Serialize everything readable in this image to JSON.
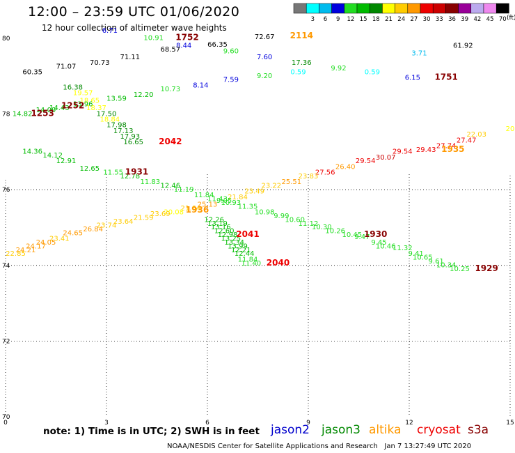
{
  "header": {
    "title": "12:00 – 23:59 UTC 01/06/2020",
    "subtitle": "12 hour collection of altimeter wave heights"
  },
  "footer": {
    "note": "note:  1) Time is in UTC;  2) SWH is in feet",
    "satellites": [
      {
        "name": "jason2",
        "color": "#0000cc"
      },
      {
        "name": "jason3",
        "color": "#008800"
      },
      {
        "name": "altika",
        "color": "#ff9900"
      },
      {
        "name": "cryosat",
        "color": "#ee0000"
      },
      {
        "name": "s3a",
        "color": "#880000"
      }
    ],
    "credit": "NOAA/NESDIS Center for Satellite Applications and Research",
    "timestamp": "Jan  7 13:27:49 UTC 2020"
  },
  "chart_data": {
    "type": "scatter",
    "title": "12:00 – 23:59 UTC 01/06/2020",
    "subtitle": "12 hour collection of altimeter wave heights",
    "xlim": [
      0,
      15
    ],
    "ylim": [
      70,
      80
    ],
    "x_ticks": [
      "0",
      "3",
      "6",
      "9",
      "12",
      "15"
    ],
    "y_ticks": [
      "70",
      "72",
      "74",
      "76",
      "78",
      "80"
    ],
    "grid": "dotted",
    "legend": {
      "placement": "top-right",
      "unit": "(ft)",
      "bins": [
        {
          "label": "",
          "color": "#777777"
        },
        {
          "label": "3",
          "color": "#00ffff"
        },
        {
          "label": "6",
          "color": "#00bbee"
        },
        {
          "label": "9",
          "color": "#0000dd"
        },
        {
          "label": "12",
          "color": "#22dd22"
        },
        {
          "label": "15",
          "color": "#00bb00"
        },
        {
          "label": "18",
          "color": "#008800"
        },
        {
          "label": "21",
          "color": "#ffff00"
        },
        {
          "label": "24",
          "color": "#ffcc00"
        },
        {
          "label": "27",
          "color": "#ff9900"
        },
        {
          "label": "30",
          "color": "#ee0000"
        },
        {
          "label": "33",
          "color": "#cc0000"
        },
        {
          "label": "36",
          "color": "#880000"
        },
        {
          "label": "39",
          "color": "#990099"
        },
        {
          "label": "42",
          "color": "#bbaaee"
        },
        {
          "label": "45",
          "color": "#ee88ee"
        },
        {
          "label": "70",
          "color": "#000000"
        }
      ]
    },
    "points": [
      {
        "x": 3.1,
        "y": 80.15,
        "v": "6.71"
      },
      {
        "x": 4.4,
        "y": 79.95,
        "v": "10.91"
      },
      {
        "x": 5.3,
        "y": 79.75,
        "v": "8.44"
      },
      {
        "x": 4.9,
        "y": 79.65,
        "v": "68.57"
      },
      {
        "x": 6.3,
        "y": 79.78,
        "v": "66.35"
      },
      {
        "x": 6.7,
        "y": 79.6,
        "v": "9.60"
      },
      {
        "x": 7.7,
        "y": 79.98,
        "v": "72.67"
      },
      {
        "x": 3.7,
        "y": 79.45,
        "v": "71.11"
      },
      {
        "x": 2.8,
        "y": 79.3,
        "v": "70.73"
      },
      {
        "x": 7.7,
        "y": 79.45,
        "v": "7.60"
      },
      {
        "x": 8.8,
        "y": 79.3,
        "v": "17.36"
      },
      {
        "x": 12.3,
        "y": 79.55,
        "v": "3.71"
      },
      {
        "x": 13.6,
        "y": 79.75,
        "v": "61.92"
      },
      {
        "x": 9.9,
        "y": 79.15,
        "v": "9.92"
      },
      {
        "x": 1.8,
        "y": 79.2,
        "v": "71.07"
      },
      {
        "x": 0.8,
        "y": 79.05,
        "v": "60.35"
      },
      {
        "x": 8.7,
        "y": 79.05,
        "v": "0.59"
      },
      {
        "x": 10.9,
        "y": 79.05,
        "v": "0.59"
      },
      {
        "x": 7.7,
        "y": 78.95,
        "v": "9.20"
      },
      {
        "x": 12.1,
        "y": 78.9,
        "v": "6.15"
      },
      {
        "x": 6.7,
        "y": 78.85,
        "v": "7.59"
      },
      {
        "x": 5.8,
        "y": 78.7,
        "v": "8.14"
      },
      {
        "x": 4.9,
        "y": 78.6,
        "v": "10.73"
      },
      {
        "x": 2.0,
        "y": 78.65,
        "v": "16.38"
      },
      {
        "x": 2.3,
        "y": 78.5,
        "v": "19.57"
      },
      {
        "x": 4.1,
        "y": 78.45,
        "v": "12.20"
      },
      {
        "x": 3.3,
        "y": 78.35,
        "v": "13.59"
      },
      {
        "x": 2.5,
        "y": 78.3,
        "v": "18.65"
      },
      {
        "x": 2.3,
        "y": 78.2,
        "v": "13.96"
      },
      {
        "x": 2.7,
        "y": 78.1,
        "v": "18.37"
      },
      {
        "x": 1.6,
        "y": 78.1,
        "v": "14.43"
      },
      {
        "x": 1.2,
        "y": 78.05,
        "v": "14.09"
      },
      {
        "x": 0.5,
        "y": 77.95,
        "v": "14.82"
      },
      {
        "x": 3.0,
        "y": 77.95,
        "v": "17.50"
      },
      {
        "x": 3.1,
        "y": 77.8,
        "v": "18.84"
      },
      {
        "x": 3.3,
        "y": 77.65,
        "v": "17.98"
      },
      {
        "x": 3.5,
        "y": 77.5,
        "v": "17.13"
      },
      {
        "x": 3.7,
        "y": 77.35,
        "v": "17.93"
      },
      {
        "x": 3.8,
        "y": 77.2,
        "v": "16.65"
      },
      {
        "x": 15.0,
        "y": 77.55,
        "v": "20"
      },
      {
        "x": 14.0,
        "y": 77.4,
        "v": "22.03"
      },
      {
        "x": 13.7,
        "y": 77.25,
        "v": "27.47"
      },
      {
        "x": 13.1,
        "y": 77.1,
        "v": "27.74"
      },
      {
        "x": 12.5,
        "y": 77.0,
        "v": "29.43"
      },
      {
        "x": 11.8,
        "y": 76.95,
        "v": "29.54"
      },
      {
        "x": 11.3,
        "y": 76.8,
        "v": "30.07"
      },
      {
        "x": 10.7,
        "y": 76.7,
        "v": "29.54"
      },
      {
        "x": 10.1,
        "y": 76.55,
        "v": "26.40"
      },
      {
        "x": 9.5,
        "y": 76.4,
        "v": "27.56"
      },
      {
        "x": 9.0,
        "y": 76.3,
        "v": "23.83"
      },
      {
        "x": 8.5,
        "y": 76.15,
        "v": "25.51"
      },
      {
        "x": 7.9,
        "y": 76.05,
        "v": "23.22"
      },
      {
        "x": 7.4,
        "y": 75.9,
        "v": "23.49"
      },
      {
        "x": 6.9,
        "y": 75.75,
        "v": "21.84"
      },
      {
        "x": 0.8,
        "y": 76.95,
        "v": "14.36"
      },
      {
        "x": 1.4,
        "y": 76.85,
        "v": "14.12"
      },
      {
        "x": 1.8,
        "y": 76.7,
        "v": "12.91"
      },
      {
        "x": 2.5,
        "y": 76.5,
        "v": "12.65"
      },
      {
        "x": 3.2,
        "y": 76.4,
        "v": "11.55"
      },
      {
        "x": 3.7,
        "y": 76.3,
        "v": "12.78"
      },
      {
        "x": 4.3,
        "y": 76.15,
        "v": "11.83"
      },
      {
        "x": 4.9,
        "y": 76.05,
        "v": "12.46"
      },
      {
        "x": 5.3,
        "y": 75.95,
        "v": "11.19"
      },
      {
        "x": 5.9,
        "y": 75.8,
        "v": "11.84"
      },
      {
        "x": 6.3,
        "y": 75.7,
        "v": "11.43"
      },
      {
        "x": 6.5,
        "y": 75.65,
        "v": "9.05"
      },
      {
        "x": 6.7,
        "y": 75.6,
        "v": "10.93"
      },
      {
        "x": 7.2,
        "y": 75.5,
        "v": "11.35"
      },
      {
        "x": 7.7,
        "y": 75.35,
        "v": "10.98"
      },
      {
        "x": 8.2,
        "y": 75.25,
        "v": "9.99"
      },
      {
        "x": 8.6,
        "y": 75.15,
        "v": "10.60"
      },
      {
        "x": 9.0,
        "y": 75.05,
        "v": "11.12"
      },
      {
        "x": 9.4,
        "y": 74.95,
        "v": "10.30"
      },
      {
        "x": 9.8,
        "y": 74.85,
        "v": "10.26"
      },
      {
        "x": 10.3,
        "y": 74.75,
        "v": "10.45"
      },
      {
        "x": 10.6,
        "y": 74.7,
        "v": "9.47"
      },
      {
        "x": 11.1,
        "y": 74.55,
        "v": "9.45"
      },
      {
        "x": 11.3,
        "y": 74.45,
        "v": "10.46"
      },
      {
        "x": 11.8,
        "y": 74.4,
        "v": "11.32"
      },
      {
        "x": 12.2,
        "y": 74.25,
        "v": "9.41"
      },
      {
        "x": 12.4,
        "y": 74.15,
        "v": "10.65"
      },
      {
        "x": 12.8,
        "y": 74.05,
        "v": "9.61"
      },
      {
        "x": 13.1,
        "y": 73.95,
        "v": "10.34"
      },
      {
        "x": 13.5,
        "y": 73.85,
        "v": "10.25"
      },
      {
        "x": 6.0,
        "y": 75.55,
        "v": "25.13"
      },
      {
        "x": 5.5,
        "y": 75.45,
        "v": "21.64"
      },
      {
        "x": 5.0,
        "y": 75.35,
        "v": "20.08"
      },
      {
        "x": 4.6,
        "y": 75.3,
        "v": "23.69"
      },
      {
        "x": 4.1,
        "y": 75.2,
        "v": "21.59"
      },
      {
        "x": 3.5,
        "y": 75.1,
        "v": "23.64"
      },
      {
        "x": 3.0,
        "y": 75.0,
        "v": "23.74"
      },
      {
        "x": 2.6,
        "y": 74.9,
        "v": "26.84"
      },
      {
        "x": 2.0,
        "y": 74.8,
        "v": "24.65"
      },
      {
        "x": 1.6,
        "y": 74.65,
        "v": "23.41"
      },
      {
        "x": 1.2,
        "y": 74.55,
        "v": "24.05"
      },
      {
        "x": 0.9,
        "y": 74.45,
        "v": "24.17"
      },
      {
        "x": 0.6,
        "y": 74.35,
        "v": "24.21"
      },
      {
        "x": 0.3,
        "y": 74.25,
        "v": "22.85"
      },
      {
        "x": 6.2,
        "y": 75.15,
        "v": "12.26"
      },
      {
        "x": 6.3,
        "y": 75.05,
        "v": "13.19"
      },
      {
        "x": 6.4,
        "y": 74.95,
        "v": "13.16"
      },
      {
        "x": 6.5,
        "y": 74.85,
        "v": "12.60"
      },
      {
        "x": 6.6,
        "y": 74.75,
        "v": "12.98"
      },
      {
        "x": 6.7,
        "y": 74.65,
        "v": "13.25"
      },
      {
        "x": 6.8,
        "y": 74.55,
        "v": "13.34"
      },
      {
        "x": 6.9,
        "y": 74.45,
        "v": "13.99"
      },
      {
        "x": 7.0,
        "y": 74.35,
        "v": "12.21"
      },
      {
        "x": 7.1,
        "y": 74.25,
        "v": "12.44"
      },
      {
        "x": 7.2,
        "y": 74.1,
        "v": "11.84"
      },
      {
        "x": 7.3,
        "y": 74.0,
        "v": "11.40"
      }
    ],
    "pass_labels": [
      {
        "x": 5.4,
        "y": 79.95,
        "text": "1752",
        "satellite": "s3a"
      },
      {
        "x": 8.8,
        "y": 80.0,
        "text": "2114",
        "satellite": "altika"
      },
      {
        "x": 13.1,
        "y": 78.9,
        "text": "1751",
        "satellite": "s3a"
      },
      {
        "x": 2.0,
        "y": 78.15,
        "text": "1252",
        "satellite": "s3a"
      },
      {
        "x": 1.1,
        "y": 77.95,
        "text": "1253",
        "satellite": "s3a"
      },
      {
        "x": 4.9,
        "y": 77.2,
        "text": "2042",
        "satellite": "cryosat"
      },
      {
        "x": 13.3,
        "y": 77.0,
        "text": "1935",
        "satellite": "altika"
      },
      {
        "x": 3.9,
        "y": 76.4,
        "text": "1931",
        "satellite": "s3a"
      },
      {
        "x": 5.7,
        "y": 75.4,
        "text": "1936",
        "satellite": "altika"
      },
      {
        "x": 7.2,
        "y": 74.75,
        "text": "2041",
        "satellite": "cryosat"
      },
      {
        "x": 11.0,
        "y": 74.75,
        "text": "1930",
        "satellite": "s3a"
      },
      {
        "x": 8.1,
        "y": 74.0,
        "text": "2040",
        "satellite": "cryosat"
      },
      {
        "x": 14.3,
        "y": 73.85,
        "text": "1929",
        "satellite": "s3a"
      }
    ]
  }
}
